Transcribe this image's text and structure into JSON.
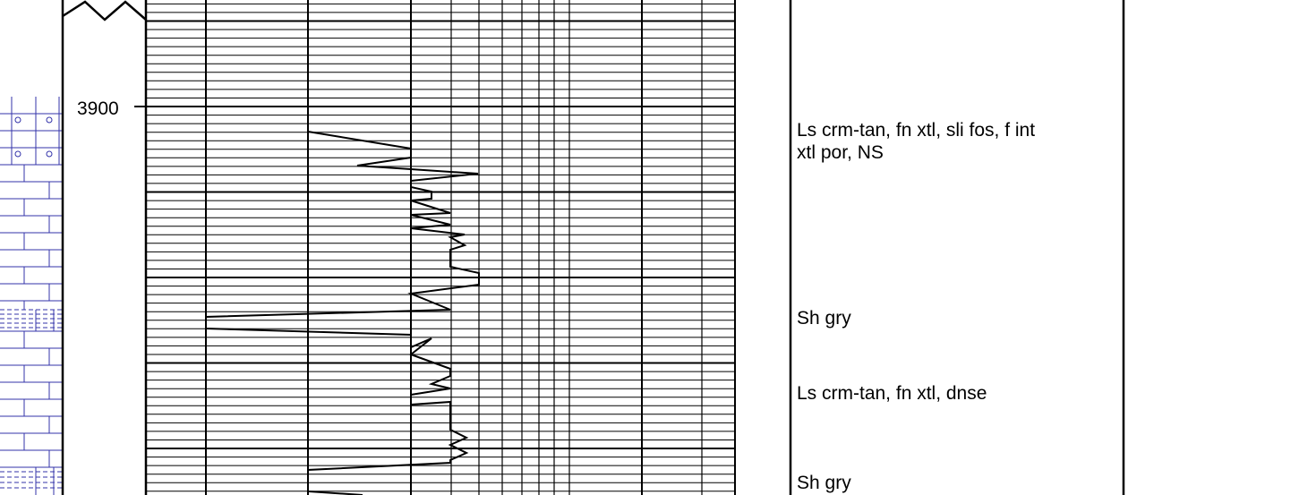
{
  "depth_labels": [
    {
      "text": "3900"
    }
  ],
  "descriptions": [
    {
      "lines": [
        "Ls crm-tan, fn xtl, sli fos, f int",
        "xtl por, NS"
      ]
    },
    {
      "lines": [
        "Sh gry"
      ]
    },
    {
      "lines": [
        "Ls crm-tan, fn xtl, dnse"
      ]
    },
    {
      "lines": [
        "Sh gry"
      ]
    }
  ],
  "lithology": [
    {
      "type": "limestone-fossiliferous",
      "top": 3900,
      "bottom": 3902
    },
    {
      "type": "limestone",
      "top": 3902,
      "bottom": 3911
    },
    {
      "type": "shale",
      "top": 3911,
      "bottom": 3912
    },
    {
      "type": "limestone",
      "top": 3912,
      "bottom": 3920
    },
    {
      "type": "shale",
      "top": 3920,
      "bottom": 3922
    }
  ],
  "colors": {
    "lithology_line": "#3333aa",
    "grid_line": "#000000",
    "curve_line": "#000000"
  }
}
